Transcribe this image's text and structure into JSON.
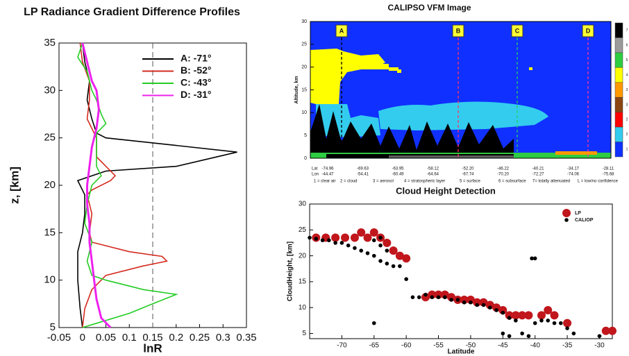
{
  "chart_data": [
    {
      "type": "line",
      "title": "LP Radiance Gradient Difference Profiles",
      "xlabel": "lnR",
      "ylabel": "z, [km]",
      "xlim": [
        -0.05,
        0.35
      ],
      "xticks": [
        -0.05,
        0,
        0.05,
        0.1,
        0.15,
        0.2,
        0.25,
        0.3,
        0.35
      ],
      "ylim": [
        5,
        35
      ],
      "yticks": [
        5,
        10,
        15,
        20,
        25,
        30,
        35
      ],
      "vline": 0.15,
      "legend": "upper right",
      "series": [
        {
          "name": "A: -71°",
          "color": "#000000",
          "x": [
            0,
            -0.005,
            -0.01,
            -0.01,
            0,
            0.005,
            0.005,
            -0.01,
            0.05,
            0.2,
            0.27,
            0.33,
            0.2,
            0.05,
            0.03,
            0.02,
            0.01,
            0.015,
            0.005,
            0
          ],
          "y": [
            5,
            7,
            10,
            13,
            15,
            17,
            19,
            20.5,
            21.5,
            22,
            22.8,
            23.5,
            24.2,
            25,
            25.5,
            27,
            29,
            31,
            33,
            35
          ]
        },
        {
          "name": "B: -52°",
          "color": "#d42a1e",
          "x": [
            0,
            0.005,
            0.02,
            0.05,
            0.13,
            0.18,
            0.17,
            0.1,
            0.02,
            0.015,
            0.02,
            0.01,
            0.02,
            0.06,
            0.07,
            0.06,
            0.03,
            0.03,
            0.01,
            0.015,
            0.015,
            0,
            -0.005
          ],
          "y": [
            5,
            7,
            9,
            10.5,
            11.5,
            12,
            12.5,
            13,
            14,
            15,
            17,
            19,
            19.5,
            20.5,
            21,
            21.5,
            23,
            25,
            27,
            29,
            31,
            33,
            35
          ]
        },
        {
          "name": "C: -43°",
          "color": "#22cc22",
          "x": [
            0,
            0.1,
            0.15,
            0.2,
            0.13,
            0.05,
            0.02,
            0.01,
            0.02,
            0.005,
            0.01,
            0.02,
            0.04,
            0.03,
            0.03,
            0.03,
            0.05,
            0.04,
            0.03,
            0.02,
            0.01,
            -0.01,
            0
          ],
          "y": [
            5,
            6.5,
            7.5,
            8.5,
            9,
            10,
            10.5,
            12,
            14,
            16,
            18,
            20,
            21,
            22,
            24,
            25.5,
            26.5,
            27.5,
            29,
            30,
            32,
            33.5,
            35
          ]
        },
        {
          "name": "D: -31°",
          "color": "#ee22ee",
          "x": [
            0.06,
            0.04,
            0.03,
            0.025,
            0.02,
            0.015,
            0.015,
            0.01,
            0.01,
            0.015,
            0.02,
            0.03,
            0.035,
            0.03,
            0.02,
            0.015,
            0.005,
            0
          ],
          "y": [
            5,
            6,
            8,
            10,
            12,
            14,
            16,
            18,
            20,
            22,
            24,
            26,
            28,
            30,
            31,
            32,
            34,
            35
          ]
        }
      ]
    },
    {
      "type": "image",
      "title": "CALIPSO VFM Image",
      "ylabel": "Altitude, km",
      "ylim": [
        0,
        30
      ],
      "yticks": [
        0,
        5,
        10,
        15,
        20,
        25,
        30
      ],
      "markers": [
        "A",
        "B",
        "C",
        "D"
      ],
      "marker_colors": [
        "#000000",
        "#ff3366",
        "#22cc66",
        "#ff3399"
      ],
      "lat_label": "Lat",
      "lon_label": "Lon",
      "lat": [
        "-74.96",
        "-69.63",
        "-63.95",
        "-58.12",
        "-52.20",
        "-46.22",
        "-40.21",
        "-34.17",
        "-28.11"
      ],
      "lon": [
        "-44.47",
        "-54.41",
        "-60.49",
        "-64.64",
        "-67.74",
        "-70.20",
        "-72.27",
        "-74.06",
        "-75.68"
      ],
      "classes": [
        "1 = clear air",
        "2 = cloud",
        "3 = aerosol",
        "4 = stratospheric layer",
        "5 = surface",
        "6 = subsurface",
        "7= totally attenuated",
        "L = low/no confidence"
      ],
      "colorbar": [
        7,
        6,
        5,
        4,
        3,
        3,
        2,
        2,
        1
      ],
      "colorbar_colors": [
        "#000000",
        "#9a9a9a",
        "#2ecc40",
        "#ffff00",
        "#ff9900",
        "#8b4513",
        "#ff0000",
        "#33ccee",
        "#1030ff"
      ]
    },
    {
      "type": "scatter",
      "title": "Cloud Height Detection",
      "xlabel": "Latitude",
      "ylabel": "CloudHeight, [km]",
      "xlim": [
        -75,
        -28
      ],
      "xticks": [
        -70,
        -65,
        -60,
        -55,
        -50,
        -45,
        -40,
        -35,
        -30
      ],
      "ylim": [
        4,
        30
      ],
      "yticks": [
        5,
        10,
        15,
        20,
        25,
        30
      ],
      "legend": "upper right",
      "series": [
        {
          "name": "LP",
          "color": "#c0161c",
          "x": [
            -74,
            -72.5,
            -71,
            -69.5,
            -68,
            -67,
            -66,
            -65,
            -64,
            -63,
            -62,
            -61,
            -60,
            -57,
            -56,
            -55,
            -54,
            -53,
            -52,
            -51,
            -50,
            -49,
            -48,
            -47,
            -46,
            -45,
            -44,
            -43,
            -42,
            -41,
            -39,
            -38,
            -37,
            -35,
            -29,
            -28
          ],
          "values": [
            23.5,
            23.5,
            23.5,
            23.5,
            23.5,
            24.5,
            23.5,
            24.5,
            23.5,
            22.5,
            21,
            20,
            19.5,
            12,
            12.5,
            12.5,
            12.5,
            12,
            11.5,
            11.5,
            11.5,
            11,
            11,
            10.5,
            10,
            9.5,
            8.5,
            8.5,
            8.5,
            8.5,
            8.5,
            9.5,
            8.5,
            7,
            5.5,
            5.5
          ]
        },
        {
          "name": "CALIOP",
          "color": "#000000",
          "x": [
            -75,
            -74,
            -73,
            -72,
            -71,
            -70,
            -69,
            -68,
            -67,
            -66,
            -65,
            -64,
            -64,
            -63,
            -62,
            -61,
            -65,
            -64,
            -63,
            -60,
            -59,
            -58,
            -57,
            -56,
            -55,
            -54,
            -53,
            -52,
            -51,
            -50,
            -49,
            -48,
            -47,
            -46,
            -45,
            -44,
            -43,
            -42,
            -41,
            -40.5,
            -40,
            -40,
            -39,
            -38,
            -37,
            -36,
            -35,
            -34,
            -30,
            -65,
            -45,
            -44
          ],
          "values": [
            23.5,
            23.3,
            23,
            23,
            22.5,
            22.5,
            22,
            21.5,
            21,
            20.5,
            20,
            19,
            22,
            18.5,
            18,
            18,
            23,
            23.5,
            21,
            15.5,
            12,
            12,
            12.5,
            12,
            12,
            12,
            11.5,
            11.5,
            11,
            11,
            10.5,
            10.5,
            10,
            9.5,
            9,
            8,
            7.5,
            5,
            4.5,
            19.5,
            19.5,
            7,
            7.5,
            7.5,
            7,
            7,
            6,
            5,
            4.5,
            7,
            5,
            4.5
          ]
        }
      ]
    }
  ]
}
